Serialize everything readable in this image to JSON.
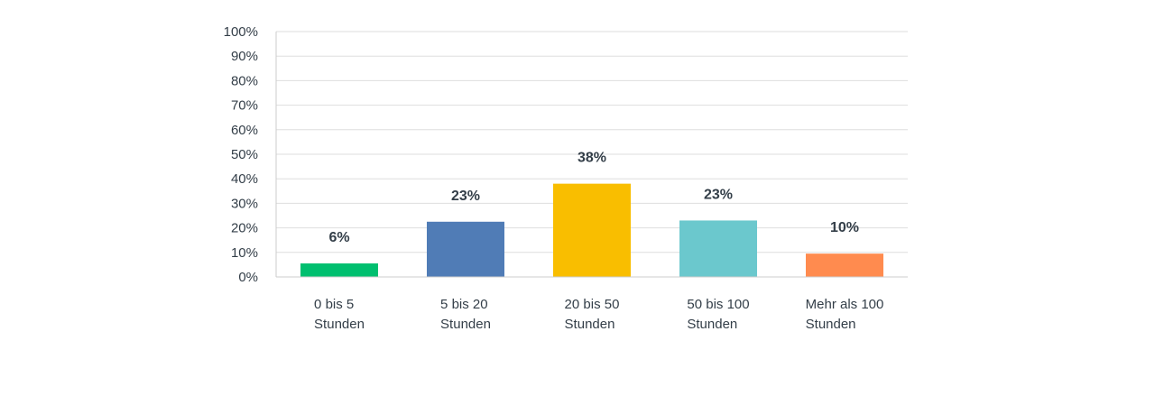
{
  "chart_data": {
    "type": "bar",
    "title": "",
    "xlabel": "",
    "ylabel": "",
    "ylim": [
      0,
      100
    ],
    "y_tick_step": 10,
    "y_unit": "%",
    "grid": true,
    "categories": [
      [
        "0 bis 5",
        "Stunden"
      ],
      [
        "5 bis 20",
        "Stunden"
      ],
      [
        "20 bis 50",
        "Stunden"
      ],
      [
        "50 bis 100",
        "Stunden"
      ],
      [
        "Mehr als 100",
        "Stunden"
      ]
    ],
    "values": [
      5.5,
      22.5,
      38,
      23,
      9.5
    ],
    "data_labels": [
      "6%",
      "23%",
      "38%",
      "23%",
      "10%"
    ],
    "colors": [
      "#00bf6f",
      "#507cb6",
      "#f9be00",
      "#6bc8cd",
      "#ff8b4f"
    ]
  }
}
